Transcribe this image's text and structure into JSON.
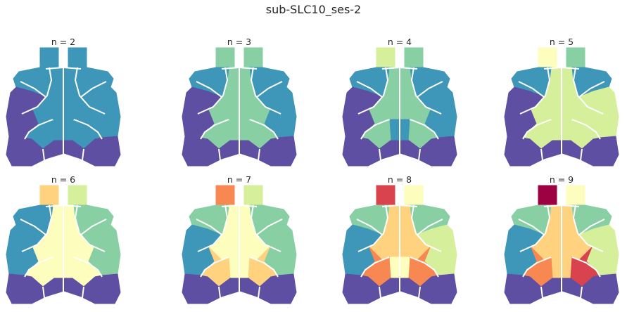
{
  "title": "sub-SLC10_ses-2",
  "palette": {
    "c1": "#5e4fa2",
    "c2": "#3e96b8",
    "c3": "#88cfa4",
    "c4": "#d6ef9b",
    "c5": "#fdfdbe",
    "c6": "#fed27f",
    "c7": "#f78851",
    "c8": "#d8434e",
    "c9": "#9e0142"
  },
  "panels": [
    {
      "label": "n = 2",
      "colors": {
        "ol": "c2",
        "or": "c2",
        "mm": "c2",
        "mc": "c2",
        "ul": "c2",
        "ur": "c2",
        "ll": "c1",
        "lr": "c2",
        "cl": "c2",
        "cr": "c2",
        "pl": "c1",
        "pr": "c1",
        "pc": "c1"
      }
    },
    {
      "label": "n = 3",
      "colors": {
        "ol": "c3",
        "or": "c3",
        "mm": "c3",
        "mc": "c3",
        "ul": "c2",
        "ur": "c2",
        "ll": "c1",
        "lr": "c2",
        "cl": "c3",
        "cr": "c3",
        "pl": "c1",
        "pr": "c1",
        "pc": "c1"
      }
    },
    {
      "label": "n = 4",
      "colors": {
        "ol": "c4",
        "or": "c3",
        "mm": "c3",
        "mc": "c2",
        "ul": "c2",
        "ur": "c2",
        "ll": "c1",
        "lr": "c2",
        "cl": "c3",
        "cr": "c3",
        "pl": "c1",
        "pr": "c1",
        "pc": "c1"
      }
    },
    {
      "label": "n = 5",
      "colors": {
        "ol": "c5",
        "or": "c3",
        "mm": "c4",
        "mc": "c4",
        "ul": "c2",
        "ur": "c2",
        "ll": "c1",
        "lr": "c4",
        "cl": "c4",
        "cr": "c4",
        "pl": "c1",
        "pr": "c1",
        "pc": "c1"
      }
    },
    {
      "label": "n = 6",
      "colors": {
        "ol": "c6",
        "or": "c4",
        "mm": "c5",
        "mc": "c5",
        "ul": "c2",
        "ur": "c3",
        "ll": "c2",
        "lr": "c3",
        "cl": "c5",
        "cr": "c5",
        "pl": "c1",
        "pr": "c1",
        "pc": "c1"
      }
    },
    {
      "label": "n = 7",
      "colors": {
        "ol": "c7",
        "or": "c4",
        "mm": "c5",
        "mc": "c5",
        "ul": "c3",
        "ur": "c3",
        "ll": "c2",
        "lr": "c3",
        "cl": "c6",
        "cr": "c6",
        "pl": "c1",
        "pr": "c1",
        "pc": "c1"
      }
    },
    {
      "label": "n = 8",
      "colors": {
        "ol": "c8",
        "or": "c5",
        "mm": "c6",
        "mc": "c5",
        "ul": "c3",
        "ur": "c3",
        "ll": "c2",
        "lr": "c4",
        "cl": "c7",
        "cr": "c7",
        "pl": "c1",
        "pr": "c1",
        "pc": "c1"
      }
    },
    {
      "label": "n = 9",
      "colors": {
        "ol": "c9",
        "or": "c5",
        "mm": "c6",
        "mc": "c6",
        "ul": "c3",
        "ur": "c3",
        "ll": "c2",
        "lr": "c4",
        "cl": "c7",
        "cr": "c8",
        "pl": "c1",
        "pr": "c1",
        "pc": "c1"
      }
    }
  ]
}
